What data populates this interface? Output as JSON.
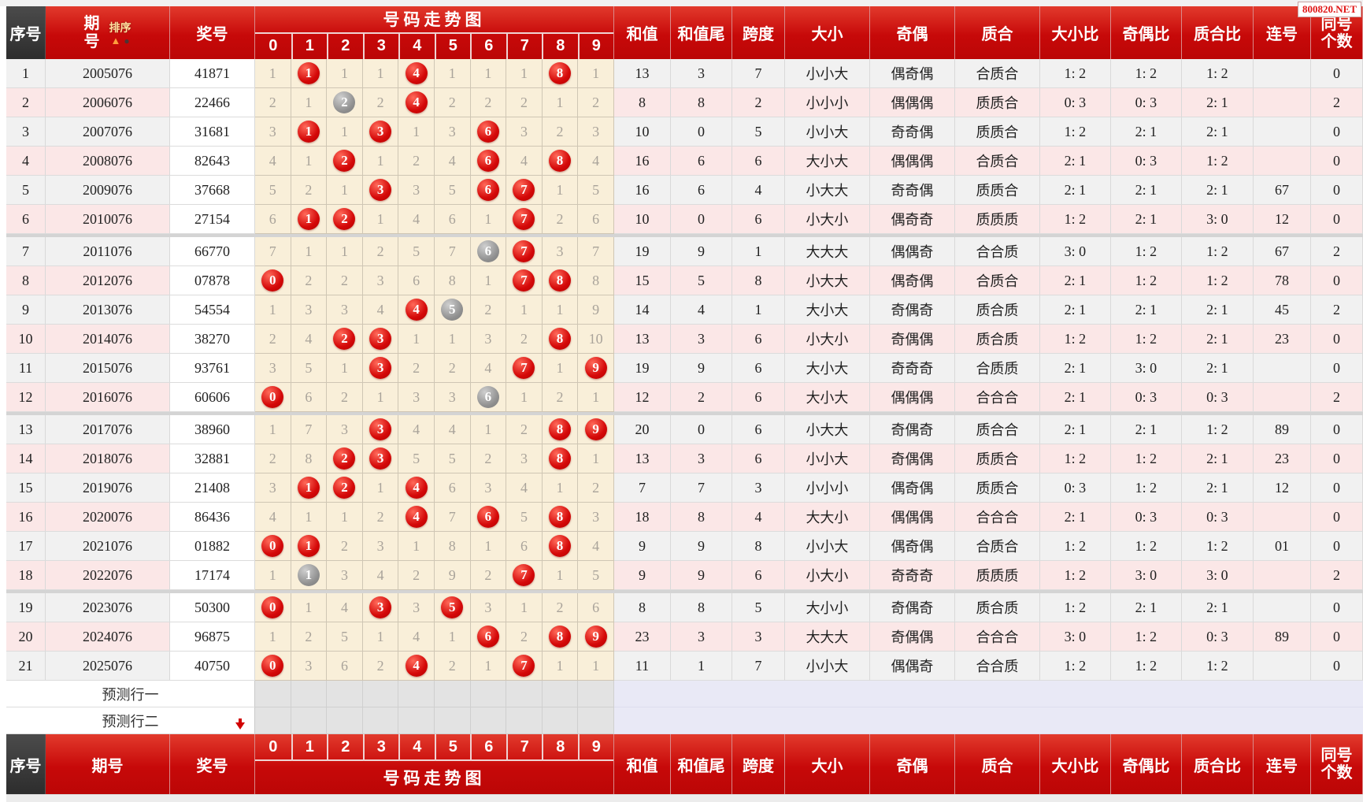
{
  "watermark": "800820.NET",
  "columns": {
    "seq": "序号",
    "period_line1": "期",
    "period_line2": "号",
    "period": "期号",
    "sort_label": "排序",
    "prize": "奖号",
    "trend_title": "号码走势图",
    "digits": [
      "0",
      "1",
      "2",
      "3",
      "4",
      "5",
      "6",
      "7",
      "8",
      "9"
    ],
    "sum": "和值",
    "sum_tail": "和值尾",
    "span": "跨度",
    "big_small": "大小",
    "odd_even": "奇偶",
    "prime_composite": "质合",
    "big_small_ratio": "大小比",
    "odd_even_ratio": "奇偶比",
    "prime_composite_ratio": "质合比",
    "consecutive": "连号",
    "same_line1": "同号",
    "same_line2": "个数"
  },
  "legend": {
    "red_ball": "#d40808",
    "gray_ball": "#8f8f8f",
    "header_red": "#c70909",
    "trend_cell_bg": "#f9efd9",
    "row_pink": "#fbe7e7",
    "row_gray": "#f1f1f1",
    "prediction_right_bg": "#e9e9f6"
  },
  "rows": [
    {
      "seq": "1",
      "period": "2005076",
      "prize": "41871",
      "trend": [
        "1",
        "R1",
        "1",
        "1",
        "R4",
        "1",
        "1",
        "1",
        "R8",
        "1"
      ],
      "sum": "13",
      "tail": "3",
      "span": "7",
      "bs": "小小大",
      "oe": "偶奇偶",
      "pc": "合质合",
      "bsr": "1: 2",
      "oer": "1: 2",
      "pcr": "1: 2",
      "lh": "",
      "th": "0",
      "sep": false
    },
    {
      "seq": "2",
      "period": "2006076",
      "prize": "22466",
      "trend": [
        "2",
        "1",
        "G2",
        "2",
        "R4",
        "2",
        "2",
        "2",
        "1",
        "2"
      ],
      "sum": "8",
      "tail": "8",
      "span": "2",
      "bs": "小小小",
      "oe": "偶偶偶",
      "pc": "质质合",
      "bsr": "0: 3",
      "oer": "0: 3",
      "pcr": "2: 1",
      "lh": "",
      "th": "2",
      "sep": false
    },
    {
      "seq": "3",
      "period": "2007076",
      "prize": "31681",
      "trend": [
        "3",
        "R1",
        "1",
        "R3",
        "1",
        "3",
        "R6",
        "3",
        "2",
        "3"
      ],
      "sum": "10",
      "tail": "0",
      "span": "5",
      "bs": "小小大",
      "oe": "奇奇偶",
      "pc": "质质合",
      "bsr": "1: 2",
      "oer": "2: 1",
      "pcr": "2: 1",
      "lh": "",
      "th": "0",
      "sep": false
    },
    {
      "seq": "4",
      "period": "2008076",
      "prize": "82643",
      "trend": [
        "4",
        "1",
        "R2",
        "1",
        "2",
        "4",
        "R6",
        "4",
        "R8",
        "4"
      ],
      "sum": "16",
      "tail": "6",
      "span": "6",
      "bs": "大小大",
      "oe": "偶偶偶",
      "pc": "合质合",
      "bsr": "2: 1",
      "oer": "0: 3",
      "pcr": "1: 2",
      "lh": "",
      "th": "0",
      "sep": false
    },
    {
      "seq": "5",
      "period": "2009076",
      "prize": "37668",
      "trend": [
        "5",
        "2",
        "1",
        "R3",
        "3",
        "5",
        "R6",
        "R7",
        "1",
        "5"
      ],
      "sum": "16",
      "tail": "6",
      "span": "4",
      "bs": "小大大",
      "oe": "奇奇偶",
      "pc": "质质合",
      "bsr": "2: 1",
      "oer": "2: 1",
      "pcr": "2: 1",
      "lh": "67",
      "th": "0",
      "sep": false
    },
    {
      "seq": "6",
      "period": "2010076",
      "prize": "27154",
      "trend": [
        "6",
        "R1",
        "R2",
        "1",
        "4",
        "6",
        "1",
        "R7",
        "2",
        "6"
      ],
      "sum": "10",
      "tail": "0",
      "span": "6",
      "bs": "小大小",
      "oe": "偶奇奇",
      "pc": "质质质",
      "bsr": "1: 2",
      "oer": "2: 1",
      "pcr": "3: 0",
      "lh": "12",
      "th": "0",
      "sep": true
    },
    {
      "seq": "7",
      "period": "2011076",
      "prize": "66770",
      "trend": [
        "7",
        "1",
        "1",
        "2",
        "5",
        "7",
        "G6",
        "R7",
        "3",
        "7"
      ],
      "sum": "19",
      "tail": "9",
      "span": "1",
      "bs": "大大大",
      "oe": "偶偶奇",
      "pc": "合合质",
      "bsr": "3: 0",
      "oer": "1: 2",
      "pcr": "1: 2",
      "lh": "67",
      "th": "2",
      "sep": false
    },
    {
      "seq": "8",
      "period": "2012076",
      "prize": "07878",
      "trend": [
        "R0",
        "2",
        "2",
        "3",
        "6",
        "8",
        "1",
        "R7",
        "R8",
        "8"
      ],
      "sum": "15",
      "tail": "5",
      "span": "8",
      "bs": "小大大",
      "oe": "偶奇偶",
      "pc": "合质合",
      "bsr": "2: 1",
      "oer": "1: 2",
      "pcr": "1: 2",
      "lh": "78",
      "th": "0",
      "sep": false
    },
    {
      "seq": "9",
      "period": "2013076",
      "prize": "54554",
      "trend": [
        "1",
        "3",
        "3",
        "4",
        "R4",
        "G5",
        "2",
        "1",
        "1",
        "9"
      ],
      "sum": "14",
      "tail": "4",
      "span": "1",
      "bs": "大小大",
      "oe": "奇偶奇",
      "pc": "质合质",
      "bsr": "2: 1",
      "oer": "2: 1",
      "pcr": "2: 1",
      "lh": "45",
      "th": "2",
      "sep": false
    },
    {
      "seq": "10",
      "period": "2014076",
      "prize": "38270",
      "trend": [
        "2",
        "4",
        "R2",
        "R3",
        "1",
        "1",
        "3",
        "2",
        "R8",
        "10"
      ],
      "sum": "13",
      "tail": "3",
      "span": "6",
      "bs": "小大小",
      "oe": "奇偶偶",
      "pc": "质合质",
      "bsr": "1: 2",
      "oer": "1: 2",
      "pcr": "2: 1",
      "lh": "23",
      "th": "0",
      "sep": false
    },
    {
      "seq": "11",
      "period": "2015076",
      "prize": "93761",
      "trend": [
        "3",
        "5",
        "1",
        "R3",
        "2",
        "2",
        "4",
        "R7",
        "1",
        "R9"
      ],
      "sum": "19",
      "tail": "9",
      "span": "6",
      "bs": "大小大",
      "oe": "奇奇奇",
      "pc": "合质质",
      "bsr": "2: 1",
      "oer": "3: 0",
      "pcr": "2: 1",
      "lh": "",
      "th": "0",
      "sep": false
    },
    {
      "seq": "12",
      "period": "2016076",
      "prize": "60606",
      "trend": [
        "R0",
        "6",
        "2",
        "1",
        "3",
        "3",
        "G6",
        "1",
        "2",
        "1"
      ],
      "sum": "12",
      "tail": "2",
      "span": "6",
      "bs": "大小大",
      "oe": "偶偶偶",
      "pc": "合合合",
      "bsr": "2: 1",
      "oer": "0: 3",
      "pcr": "0: 3",
      "lh": "",
      "th": "2",
      "sep": true
    },
    {
      "seq": "13",
      "period": "2017076",
      "prize": "38960",
      "trend": [
        "1",
        "7",
        "3",
        "R3",
        "4",
        "4",
        "1",
        "2",
        "R8",
        "R9"
      ],
      "sum": "20",
      "tail": "0",
      "span": "6",
      "bs": "小大大",
      "oe": "奇偶奇",
      "pc": "质合合",
      "bsr": "2: 1",
      "oer": "2: 1",
      "pcr": "1: 2",
      "lh": "89",
      "th": "0",
      "sep": false
    },
    {
      "seq": "14",
      "period": "2018076",
      "prize": "32881",
      "trend": [
        "2",
        "8",
        "R2",
        "R3",
        "5",
        "5",
        "2",
        "3",
        "R8",
        "1"
      ],
      "sum": "13",
      "tail": "3",
      "span": "6",
      "bs": "小小大",
      "oe": "奇偶偶",
      "pc": "质质合",
      "bsr": "1: 2",
      "oer": "1: 2",
      "pcr": "2: 1",
      "lh": "23",
      "th": "0",
      "sep": false
    },
    {
      "seq": "15",
      "period": "2019076",
      "prize": "21408",
      "trend": [
        "3",
        "R1",
        "R2",
        "1",
        "R4",
        "6",
        "3",
        "4",
        "1",
        "2"
      ],
      "sum": "7",
      "tail": "7",
      "span": "3",
      "bs": "小小小",
      "oe": "偶奇偶",
      "pc": "质质合",
      "bsr": "0: 3",
      "oer": "1: 2",
      "pcr": "2: 1",
      "lh": "12",
      "th": "0",
      "sep": false
    },
    {
      "seq": "16",
      "period": "2020076",
      "prize": "86436",
      "trend": [
        "4",
        "1",
        "1",
        "2",
        "R4",
        "7",
        "R6",
        "5",
        "R8",
        "3"
      ],
      "sum": "18",
      "tail": "8",
      "span": "4",
      "bs": "大大小",
      "oe": "偶偶偶",
      "pc": "合合合",
      "bsr": "2: 1",
      "oer": "0: 3",
      "pcr": "0: 3",
      "lh": "",
      "th": "0",
      "sep": false
    },
    {
      "seq": "17",
      "period": "2021076",
      "prize": "01882",
      "trend": [
        "R0",
        "R1",
        "2",
        "3",
        "1",
        "8",
        "1",
        "6",
        "R8",
        "4"
      ],
      "sum": "9",
      "tail": "9",
      "span": "8",
      "bs": "小小大",
      "oe": "偶奇偶",
      "pc": "合质合",
      "bsr": "1: 2",
      "oer": "1: 2",
      "pcr": "1: 2",
      "lh": "01",
      "th": "0",
      "sep": false
    },
    {
      "seq": "18",
      "period": "2022076",
      "prize": "17174",
      "trend": [
        "1",
        "G1",
        "3",
        "4",
        "2",
        "9",
        "2",
        "R7",
        "1",
        "5"
      ],
      "sum": "9",
      "tail": "9",
      "span": "6",
      "bs": "小大小",
      "oe": "奇奇奇",
      "pc": "质质质",
      "bsr": "1: 2",
      "oer": "3: 0",
      "pcr": "3: 0",
      "lh": "",
      "th": "2",
      "sep": true
    },
    {
      "seq": "19",
      "period": "2023076",
      "prize": "50300",
      "trend": [
        "R0",
        "1",
        "4",
        "R3",
        "3",
        "R5",
        "3",
        "1",
        "2",
        "6"
      ],
      "sum": "8",
      "tail": "8",
      "span": "5",
      "bs": "大小小",
      "oe": "奇偶奇",
      "pc": "质合质",
      "bsr": "1: 2",
      "oer": "2: 1",
      "pcr": "2: 1",
      "lh": "",
      "th": "0",
      "sep": false
    },
    {
      "seq": "20",
      "period": "2024076",
      "prize": "96875",
      "trend": [
        "1",
        "2",
        "5",
        "1",
        "4",
        "1",
        "R6",
        "2",
        "R8",
        "R9"
      ],
      "sum": "23",
      "tail": "3",
      "span": "3",
      "bs": "大大大",
      "oe": "奇偶偶",
      "pc": "合合合",
      "bsr": "3: 0",
      "oer": "1: 2",
      "pcr": "0: 3",
      "lh": "89",
      "th": "0",
      "sep": false
    },
    {
      "seq": "21",
      "period": "2025076",
      "prize": "40750",
      "trend": [
        "R0",
        "3",
        "6",
        "2",
        "R4",
        "2",
        "1",
        "R7",
        "1",
        "1"
      ],
      "sum": "11",
      "tail": "1",
      "span": "7",
      "bs": "小小大",
      "oe": "偶偶奇",
      "pc": "合合质",
      "bsr": "1: 2",
      "oer": "1: 2",
      "pcr": "1: 2",
      "lh": "",
      "th": "0",
      "sep": false
    }
  ],
  "prediction_rows": [
    "预测行一",
    "预测行二"
  ]
}
